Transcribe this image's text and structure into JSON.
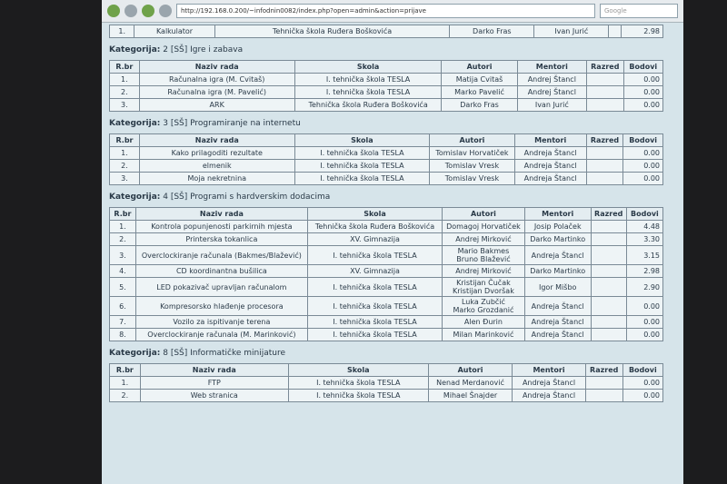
{
  "browser": {
    "url": "http://192.168.0.200/~infodnin0082/index.php?open=admin&action=prijave",
    "search": "Google"
  },
  "columns": [
    "R.br",
    "Naziv rada",
    "Skola",
    "Autori",
    "Mentori",
    "Razred",
    "Bodovi"
  ],
  "category_label": "Kategorija:",
  "top_row": [
    "1.",
    "Kalkulator",
    "Tehnička škola Ruđera Boškovića",
    "Darko Fras",
    "Ivan Jurić",
    "",
    "2.98"
  ],
  "categories": [
    {
      "name": "2 [SŠ] Igre i zabava",
      "rows": [
        [
          "1.",
          "Računalna igra (M. Cvitaš)",
          "I. tehnička škola TESLA",
          "Matija Cvitaš",
          "Andrej Štancl",
          "",
          "0.00"
        ],
        [
          "2.",
          "Računalna igra (M. Pavelić)",
          "I. tehnička škola TESLA",
          "Marko Pavelić",
          "Andrej Štancl",
          "",
          "0.00"
        ],
        [
          "3.",
          "ARK",
          "Tehnička škola Ruđera Boškovića",
          "Darko Fras",
          "Ivan Jurić",
          "",
          "0.00"
        ]
      ]
    },
    {
      "name": "3 [SŠ] Programiranje na internetu",
      "rows": [
        [
          "1.",
          "Kako prilagoditi rezultate",
          "I. tehnička škola TESLA",
          "Tomislav Horvatiček",
          "Andreja Štancl",
          "",
          "0.00"
        ],
        [
          "2.",
          "elmenik",
          "I. tehnička škola TESLA",
          "Tomislav Vresk",
          "Andreja Štancl",
          "",
          "0.00"
        ],
        [
          "3.",
          "Moja nekretnina",
          "I. tehnička škola TESLA",
          "Tomislav Vresk",
          "Andreja Štancl",
          "",
          "0.00"
        ]
      ]
    },
    {
      "name": "4 [SŠ] Programi s hardverskim dodacima",
      "rows": [
        [
          "1.",
          "Kontrola popunjenosti parkirnih mjesta",
          "Tehnička škola Ruđera Boškovića",
          "Domagoj Horvatiček",
          "Josip Polaček",
          "",
          "4.48"
        ],
        [
          "2.",
          "Printerska tokanlica",
          "XV. Gimnazija",
          "Andrej Mirković",
          "Darko Martinko",
          "",
          "3.30"
        ],
        [
          "3.",
          "Overclockiranje računala (Bakmes/Blažević)",
          "I. tehnička škola TESLA",
          [
            "Mario Bakmes",
            "Bruno Blažević"
          ],
          "Andreja Štancl",
          "",
          "3.15"
        ],
        [
          "4.",
          "CD koordinantna bušilica",
          "XV. Gimnazija",
          "Andrej Mirković",
          "Darko Martinko",
          "",
          "2.98"
        ],
        [
          "5.",
          "LED pokazivač upravljan računalom",
          "I. tehnička škola TESLA",
          [
            "Kristijan Čučak",
            "Kristijan Dvoršak"
          ],
          "Igor Mišbo",
          "",
          "2.90"
        ],
        [
          "6.",
          "Kompresorsko hlađenje procesora",
          "I. tehnička škola TESLA",
          [
            "Luka Zubčić",
            "Marko Grozdanić"
          ],
          "Andreja Štancl",
          "",
          "0.00"
        ],
        [
          "7.",
          "Vozilo za ispitivanje terena",
          "I. tehnička škola TESLA",
          "Alen Đurin",
          "Andreja Štancl",
          "",
          "0.00"
        ],
        [
          "8.",
          "Overclockiranje računala (M. Marinković)",
          "I. tehnička škola TESLA",
          "Milan Marinković",
          "Andreja Štancl",
          "",
          "0.00"
        ]
      ]
    },
    {
      "name": "8 [SŠ] Informatičke minijature",
      "rows": [
        [
          "1.",
          "FTP",
          "I. tehnička škola TESLA",
          "Nenad Merdanović",
          "Andreja Štancl",
          "",
          "0.00"
        ],
        [
          "2.",
          "Web stranica",
          "I. tehnička škola TESLA",
          "Mihael Šnajder",
          "Andreja Štancl",
          "",
          "0.00"
        ]
      ]
    }
  ]
}
